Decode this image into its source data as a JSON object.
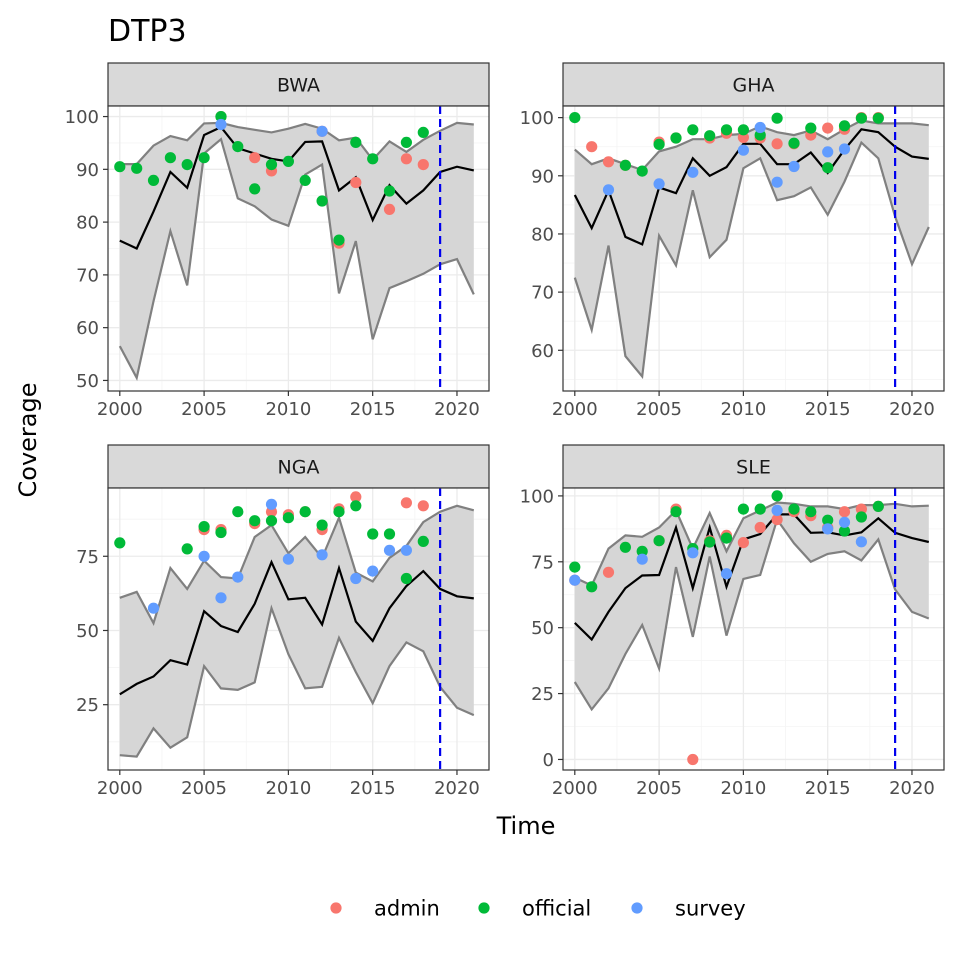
{
  "chart_data": {
    "type": "line",
    "title": "DTP3",
    "xlabel": "Time",
    "ylabel": "Coverage",
    "colors": {
      "admin": "#F8766D",
      "official": "#00BA38",
      "survey": "#619CFF",
      "line": "#000000",
      "band_line": "#808080",
      "band_fill": "#d6d6d6",
      "vline": "#0000ee"
    },
    "vline_x": 2019,
    "legend": {
      "position": "bottom",
      "entries": [
        {
          "key": "admin",
          "label": "admin"
        },
        {
          "key": "official",
          "label": "official"
        },
        {
          "key": "survey",
          "label": "survey"
        }
      ]
    },
    "panels": [
      {
        "name": "BWA",
        "xlim": [
          1999.3,
          2021.9
        ],
        "ylim": [
          48,
          102
        ],
        "xticks": [
          2000,
          2005,
          2010,
          2015,
          2020
        ],
        "yticks": [
          50,
          60,
          70,
          80,
          90,
          100
        ],
        "x": [
          2000,
          2001,
          2002,
          2003,
          2004,
          2005,
          2006,
          2007,
          2008,
          2009,
          2010,
          2011,
          2012,
          2013,
          2014,
          2015,
          2016,
          2017,
          2018,
          2019,
          2020,
          2021
        ],
        "median": [
          76.5,
          75,
          82,
          89.5,
          86.5,
          96.5,
          98,
          94,
          93,
          92,
          91.5,
          95.2,
          95.3,
          86,
          88.5,
          80.4,
          87,
          83.5,
          86,
          89.5,
          90.5,
          89.8
        ],
        "upper": [
          91,
          91,
          94.5,
          96.3,
          95.5,
          98.7,
          98.8,
          98,
          97.5,
          97,
          97.7,
          98.6,
          97.7,
          95.5,
          96,
          91.8,
          95.3,
          93.3,
          95.6,
          97.3,
          98.8,
          98.5
        ],
        "lower": [
          56.5,
          50.5,
          65,
          78.3,
          68,
          93,
          95.7,
          84.5,
          83,
          80.5,
          79.3,
          89,
          90.9,
          66.5,
          76.4,
          57.8,
          67.5,
          68.8,
          70.2,
          72,
          73,
          66.3
        ],
        "points": {
          "admin": [
            [
              2006,
              100
            ],
            [
              2008,
              92.2
            ],
            [
              2009,
              89.7
            ],
            [
              2012,
              97.2
            ],
            [
              2013,
              76
            ],
            [
              2014,
              87.5
            ],
            [
              2016,
              82.4
            ],
            [
              2017,
              92
            ],
            [
              2018,
              90.9
            ]
          ],
          "official": [
            [
              2000,
              90.5
            ],
            [
              2001,
              90.2
            ],
            [
              2002,
              87.9
            ],
            [
              2003,
              92.2
            ],
            [
              2004,
              90.9
            ],
            [
              2005,
              92.2
            ],
            [
              2006,
              100
            ],
            [
              2007,
              94.3
            ],
            [
              2008,
              86.3
            ],
            [
              2009,
              90.9
            ],
            [
              2010,
              91.5
            ],
            [
              2011,
              87.9
            ],
            [
              2012,
              84
            ],
            [
              2013,
              76.6
            ],
            [
              2014,
              95.1
            ],
            [
              2015,
              92
            ],
            [
              2016,
              85.9
            ],
            [
              2017,
              95.1
            ],
            [
              2018,
              97
            ]
          ],
          "survey": [
            [
              2006,
              98.5
            ],
            [
              2012,
              97.2
            ]
          ]
        }
      },
      {
        "name": "GHA",
        "xlim": [
          1999.3,
          2021.9
        ],
        "ylim": [
          53,
          102
        ],
        "xticks": [
          2000,
          2005,
          2010,
          2015,
          2020
        ],
        "yticks": [
          60,
          70,
          80,
          90,
          100
        ],
        "x": [
          2000,
          2001,
          2002,
          2003,
          2004,
          2005,
          2006,
          2007,
          2008,
          2009,
          2010,
          2011,
          2012,
          2013,
          2014,
          2015,
          2016,
          2017,
          2018,
          2019,
          2020,
          2021
        ],
        "median": [
          86.7,
          81,
          87.5,
          79.5,
          78.2,
          88,
          87,
          93,
          90,
          91.5,
          95.5,
          95.5,
          92,
          92,
          94,
          90.5,
          94.5,
          98,
          97.5,
          95,
          93.3,
          92.9
        ],
        "upper": [
          94.5,
          92,
          93,
          92,
          91,
          94.2,
          95,
          96.3,
          96.3,
          97,
          97.2,
          98.5,
          97.5,
          97,
          97.8,
          96.3,
          98,
          99.5,
          99,
          99,
          99,
          98.7
        ],
        "lower": [
          72.5,
          63.5,
          78,
          59,
          55.5,
          79.7,
          74.6,
          87.5,
          76,
          79,
          91.3,
          93,
          85.8,
          86.5,
          88,
          83.3,
          89,
          95.7,
          93,
          83,
          74.8,
          81.2
        ],
        "points": {
          "admin": [
            [
              2001,
              95
            ],
            [
              2002,
              92.4
            ],
            [
              2003,
              91.8
            ],
            [
              2005,
              95.8
            ],
            [
              2006,
              96.5
            ],
            [
              2008,
              96.5
            ],
            [
              2009,
              97.3
            ],
            [
              2010,
              96.6
            ],
            [
              2011,
              96.5
            ],
            [
              2012,
              95.5
            ],
            [
              2013,
              95.5
            ],
            [
              2014,
              97
            ],
            [
              2015,
              98.2
            ],
            [
              2016,
              98
            ],
            [
              2017,
              100
            ],
            [
              2018,
              100
            ]
          ],
          "official": [
            [
              2000,
              100
            ],
            [
              2003,
              91.8
            ],
            [
              2004,
              90.8
            ],
            [
              2005,
              95.4
            ],
            [
              2006,
              96.5
            ],
            [
              2007,
              97.9
            ],
            [
              2008,
              96.9
            ],
            [
              2009,
              97.9
            ],
            [
              2010,
              97.9
            ],
            [
              2011,
              97.0
            ],
            [
              2012,
              99.9
            ],
            [
              2013,
              95.6
            ],
            [
              2014,
              98.2
            ],
            [
              2015,
              91.4
            ],
            [
              2016,
              98.6
            ],
            [
              2017,
              99.9
            ],
            [
              2018,
              99.9
            ]
          ],
          "survey": [
            [
              2002,
              87.6
            ],
            [
              2005,
              88.6
            ],
            [
              2007,
              90.6
            ],
            [
              2010,
              94.4
            ],
            [
              2011,
              98.3
            ],
            [
              2012,
              88.9
            ],
            [
              2013,
              91.6
            ],
            [
              2015,
              94.1
            ],
            [
              2016,
              94.6
            ]
          ]
        }
      },
      {
        "name": "NGA",
        "xlim": [
          1999.3,
          2021.9
        ],
        "ylim": [
          3,
          98
        ],
        "xticks": [
          2000,
          2005,
          2010,
          2015,
          2020
        ],
        "yticks": [
          25,
          50,
          75
        ],
        "x": [
          2000,
          2001,
          2002,
          2003,
          2004,
          2005,
          2006,
          2007,
          2008,
          2009,
          2010,
          2011,
          2012,
          2013,
          2014,
          2015,
          2016,
          2017,
          2018,
          2019,
          2020,
          2021
        ],
        "median": [
          28.5,
          32,
          34.5,
          40,
          38.5,
          56.5,
          51.5,
          49.5,
          59,
          73,
          60.5,
          61,
          52,
          71,
          53,
          46.5,
          57.5,
          65,
          70,
          64,
          61.5,
          60.8
        ],
        "upper": [
          61,
          63,
          52.5,
          71,
          64,
          73.5,
          68,
          67.5,
          81.5,
          85.5,
          76,
          81.5,
          74.5,
          88,
          69.5,
          66.5,
          74.5,
          78.5,
          86.5,
          90,
          92,
          90.5
        ],
        "lower": [
          8,
          7.5,
          17,
          10.5,
          14,
          38,
          30.5,
          30,
          32.5,
          57.5,
          42,
          30.5,
          31,
          47.5,
          36,
          25.5,
          38,
          46,
          43,
          31,
          24,
          21.5
        ],
        "points": {
          "admin": [
            [
              2005,
              84
            ],
            [
              2006,
              84
            ],
            [
              2008,
              86
            ],
            [
              2009,
              90
            ],
            [
              2010,
              89
            ],
            [
              2011,
              90
            ],
            [
              2012,
              84
            ],
            [
              2013,
              91
            ],
            [
              2014,
              95
            ],
            [
              2017,
              93
            ],
            [
              2018,
              92
            ]
          ],
          "official": [
            [
              2000,
              79.5
            ],
            [
              2004,
              77.5
            ],
            [
              2005,
              85
            ],
            [
              2006,
              83
            ],
            [
              2007,
              90
            ],
            [
              2008,
              87
            ],
            [
              2009,
              87
            ],
            [
              2010,
              88
            ],
            [
              2011,
              90
            ],
            [
              2012,
              85.5
            ],
            [
              2013,
              90
            ],
            [
              2014,
              92
            ],
            [
              2015,
              82.5
            ],
            [
              2016,
              82.5
            ],
            [
              2017,
              67.5
            ],
            [
              2018,
              80
            ]
          ],
          "survey": [
            [
              2002,
              57.5
            ],
            [
              2005,
              75
            ],
            [
              2006,
              61
            ],
            [
              2007,
              68
            ],
            [
              2009,
              92.5
            ],
            [
              2010,
              74
            ],
            [
              2012,
              75.5
            ],
            [
              2014,
              67.5
            ],
            [
              2015,
              70
            ],
            [
              2016,
              77
            ],
            [
              2017,
              77
            ]
          ]
        }
      },
      {
        "name": "SLE",
        "xlim": [
          1999.3,
          2021.9
        ],
        "ylim": [
          -4,
          103
        ],
        "xticks": [
          2000,
          2005,
          2010,
          2015,
          2020
        ],
        "yticks": [
          0,
          25,
          50,
          75,
          100
        ],
        "x": [
          2000,
          2001,
          2002,
          2003,
          2004,
          2005,
          2006,
          2007,
          2008,
          2009,
          2010,
          2011,
          2012,
          2013,
          2014,
          2015,
          2016,
          2017,
          2018,
          2019,
          2020,
          2021
        ],
        "median": [
          51.8,
          45.5,
          56,
          65,
          69.8,
          70,
          88,
          65,
          88,
          65.5,
          83.5,
          85.5,
          93,
          93,
          86,
          86.2,
          85,
          86.2,
          91.5,
          86,
          84,
          82.5
        ],
        "upper": [
          69,
          66,
          80,
          85,
          84.5,
          88,
          94.5,
          80,
          93.5,
          79,
          91.5,
          94.5,
          97.5,
          97,
          96,
          96,
          95,
          96.5,
          96.5,
          97,
          96,
          96.3
        ],
        "lower": [
          29.4,
          19,
          27,
          40,
          51,
          34.5,
          73,
          46.5,
          77,
          47,
          68.5,
          70,
          91,
          82,
          75,
          78,
          79,
          75.5,
          83.5,
          64.5,
          56,
          53.5
        ],
        "points": {
          "admin": [
            [
              2000,
              68
            ],
            [
              2002,
              71
            ],
            [
              2005,
              83
            ],
            [
              2006,
              95
            ],
            [
              2007,
              0
            ],
            [
              2008,
              83
            ],
            [
              2009,
              85
            ],
            [
              2010,
              82.3
            ],
            [
              2011,
              88
            ],
            [
              2012,
              91
            ],
            [
              2013,
              94
            ],
            [
              2014,
              92.5
            ],
            [
              2015,
              88
            ],
            [
              2016,
              94
            ],
            [
              2017,
              95
            ],
            [
              2018,
              96
            ]
          ],
          "official": [
            [
              2000,
              73
            ],
            [
              2001,
              65.5
            ],
            [
              2003,
              80.5
            ],
            [
              2004,
              79
            ],
            [
              2005,
              83
            ],
            [
              2006,
              94
            ],
            [
              2007,
              80
            ],
            [
              2008,
              82.5
            ],
            [
              2009,
              84
            ],
            [
              2010,
              95
            ],
            [
              2011,
              95
            ],
            [
              2012,
              100
            ],
            [
              2013,
              95
            ],
            [
              2014,
              94
            ],
            [
              2015,
              90.8
            ],
            [
              2016,
              86.7
            ],
            [
              2017,
              92
            ],
            [
              2018,
              96
            ]
          ],
          "survey": [
            [
              2000,
              68
            ],
            [
              2004,
              76
            ],
            [
              2007,
              78.4
            ],
            [
              2009,
              70.5
            ],
            [
              2012,
              94.5
            ],
            [
              2015,
              87.5
            ],
            [
              2016,
              90
            ],
            [
              2017,
              82.6
            ]
          ]
        }
      }
    ]
  }
}
